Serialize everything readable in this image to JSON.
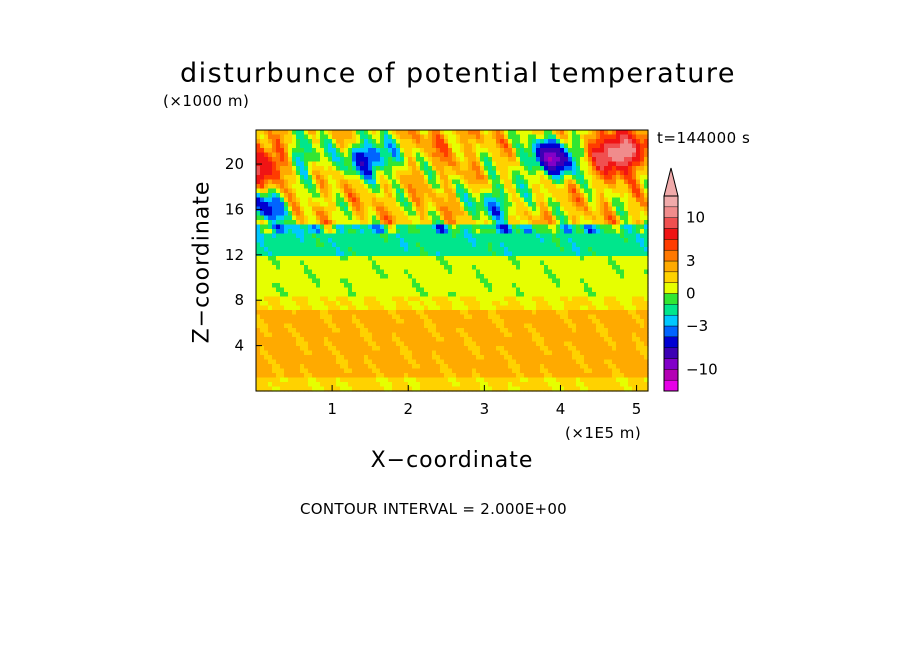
{
  "chart_data": {
    "type": "heatmap",
    "title": "disturbunce of potential temperature",
    "xlabel": "X−coordinate",
    "ylabel": "Z−coordinate",
    "x_unit": "(×1E5 m)",
    "y_unit": "(×1000 m)",
    "time_label": "t=144000 s",
    "contour_interval_label": "CONTOUR INTERVAL = 2.000E+00",
    "xlim": [
      0,
      5.15
    ],
    "ylim": [
      0,
      23
    ],
    "x_ticks": [
      1,
      2,
      3,
      4,
      5
    ],
    "y_ticks": [
      4,
      8,
      12,
      16,
      20
    ],
    "colorbar_levels": [
      -14,
      -12,
      -10,
      -8,
      -6,
      -4,
      -3,
      -2,
      -1,
      0,
      1,
      2,
      3,
      4,
      6,
      8,
      10,
      12,
      14
    ],
    "colorbar_colors": [
      "#e600e6",
      "#b400b4",
      "#8200c8",
      "#3c00b4",
      "#0000d2",
      "#0064ff",
      "#00c8ff",
      "#00e68c",
      "#32e632",
      "#e6ff00",
      "#ffd200",
      "#ffaa00",
      "#ff7800",
      "#ff3c00",
      "#f01414",
      "#f05050",
      "#f08c8c",
      "#f0aaaa"
    ],
    "colorbar_tick_labels": [
      {
        "value": 10,
        "label": "10"
      },
      {
        "value": 3,
        "label": "3"
      },
      {
        "value": 0,
        "label": "0"
      },
      {
        "value": -3,
        "label": "−3"
      },
      {
        "value": -10,
        "label": "−10"
      }
    ],
    "field_regions": [
      {
        "z_range": [
          0,
          1
        ],
        "value": 1.2,
        "note": "yellow band"
      },
      {
        "z_range": [
          1,
          7
        ],
        "value": 2.3,
        "note": "orange layer"
      },
      {
        "z_range": [
          7,
          8.5
        ],
        "value": 1.0,
        "note": "yellow layer"
      },
      {
        "z_range": [
          8.5,
          12
        ],
        "value": 0.4,
        "note": "green layer"
      },
      {
        "z_range": [
          12,
          14.5
        ],
        "value": -1.5,
        "note": "cyan layer"
      },
      {
        "z_range": [
          14.5,
          23
        ],
        "value": 1.5,
        "note": "mixed upper layer"
      }
    ],
    "features": [
      {
        "x": 0.15,
        "z": 20,
        "value": 9
      },
      {
        "x": 4.75,
        "z": 21,
        "value": 13
      },
      {
        "x": 3.9,
        "z": 20.5,
        "value": -8
      },
      {
        "x": 1.5,
        "z": 20.5,
        "value": -5
      },
      {
        "x": 0.55,
        "z": 20.5,
        "value": -3
      },
      {
        "x": 0.1,
        "z": 16.2,
        "value": -4
      },
      {
        "x": 3.15,
        "z": 16.5,
        "value": -2.5
      },
      {
        "x": 2.5,
        "z": 22,
        "value": 3
      }
    ]
  }
}
